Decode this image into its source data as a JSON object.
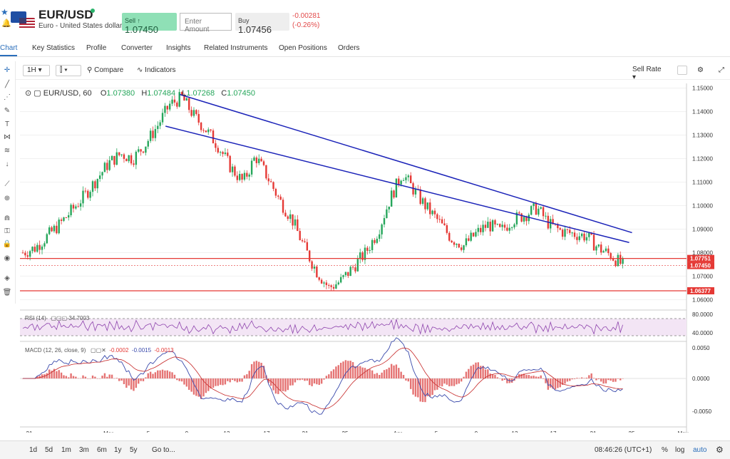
{
  "header": {
    "symbol": "EUR/USD",
    "description": "Euro - United States dollar",
    "sell_label": "Sell",
    "sell_price": "1.07450",
    "amount_placeholder": "Enter Amount",
    "buy_label": "Buy",
    "buy_price": "1.07456",
    "change_abs": "-0.00281",
    "change_pct": "(-0.26%)"
  },
  "tabs": [
    "Chart",
    "Key Statistics",
    "Profile",
    "Converter",
    "Insights",
    "Related Instruments",
    "Open Positions",
    "Orders"
  ],
  "toolbar": {
    "interval": "1H",
    "compare": "Compare",
    "indicators": "Indicators",
    "rate": "Sell Rate"
  },
  "legend": {
    "title": "EUR/USD, 60",
    "o_label": "O",
    "o": "1.07380",
    "h_label": "H",
    "h": "1.07484",
    "l_label": "L",
    "l": "1.07268",
    "c_label": "C",
    "c": "1.07450"
  },
  "rsi": {
    "label": "RSI (14)",
    "value": "34.7003"
  },
  "macd": {
    "label": "MACD (12, 26, close, 9)",
    "v1": "-0.0002",
    "v2": "-0.0015",
    "v3": "-0.0013"
  },
  "bottom": {
    "ranges": [
      "1d",
      "5d",
      "1m",
      "3m",
      "6m",
      "1y",
      "5y"
    ],
    "goto": "Go to...",
    "time": "08:46:26 (UTC+1)",
    "pct": "%",
    "log": "log",
    "auto": "auto"
  },
  "chart_data": {
    "type": "candlestick",
    "price_axis": [
      "1.15000",
      "1.14000",
      "1.13000",
      "1.12000",
      "1.11000",
      "1.10000",
      "1.09000",
      "1.08000",
      "1.07000",
      "1.06000"
    ],
    "ylim": [
      1.058,
      1.152
    ],
    "x_ticks": [
      "21",
      "Mar",
      "5",
      "9",
      "13",
      "17",
      "21",
      "25",
      "Apr",
      "5",
      "9",
      "13",
      "17",
      "21",
      "25",
      "May"
    ],
    "close_path": [
      1.08,
      1.082,
      1.087,
      1.092,
      1.098,
      1.104,
      1.111,
      1.118,
      1.122,
      1.12,
      1.126,
      1.134,
      1.143,
      1.146,
      1.138,
      1.132,
      1.125,
      1.116,
      1.11,
      1.121,
      1.112,
      1.102,
      1.094,
      1.082,
      1.072,
      1.065,
      1.068,
      1.074,
      1.08,
      1.089,
      1.103,
      1.114,
      1.106,
      1.099,
      1.093,
      1.086,
      1.083,
      1.088,
      1.092,
      1.089,
      1.094,
      1.096,
      1.099,
      1.092,
      1.089,
      1.088,
      1.087,
      1.082,
      1.079,
      1.0745
    ],
    "markers": [
      {
        "label": "1.07751",
        "value": 1.07751,
        "color": "#e53935"
      },
      {
        "label": "1.07450",
        "value": 1.0745,
        "color": "#e53935"
      },
      {
        "label": "1.06377",
        "value": 1.06377,
        "color": "#e53935"
      }
    ],
    "trendlines": [
      {
        "from": [
          0.225,
          1.1473
        ],
        "to": [
          0.862,
          1.0885
        ]
      },
      {
        "from": [
          0.205,
          1.1338
        ],
        "to": [
          0.858,
          1.0843
        ]
      }
    ],
    "rsi_axis": [
      "80.0000",
      "40.0000"
    ],
    "macd_axis": [
      "0.0050",
      "0.0000",
      "-0.0050"
    ]
  }
}
